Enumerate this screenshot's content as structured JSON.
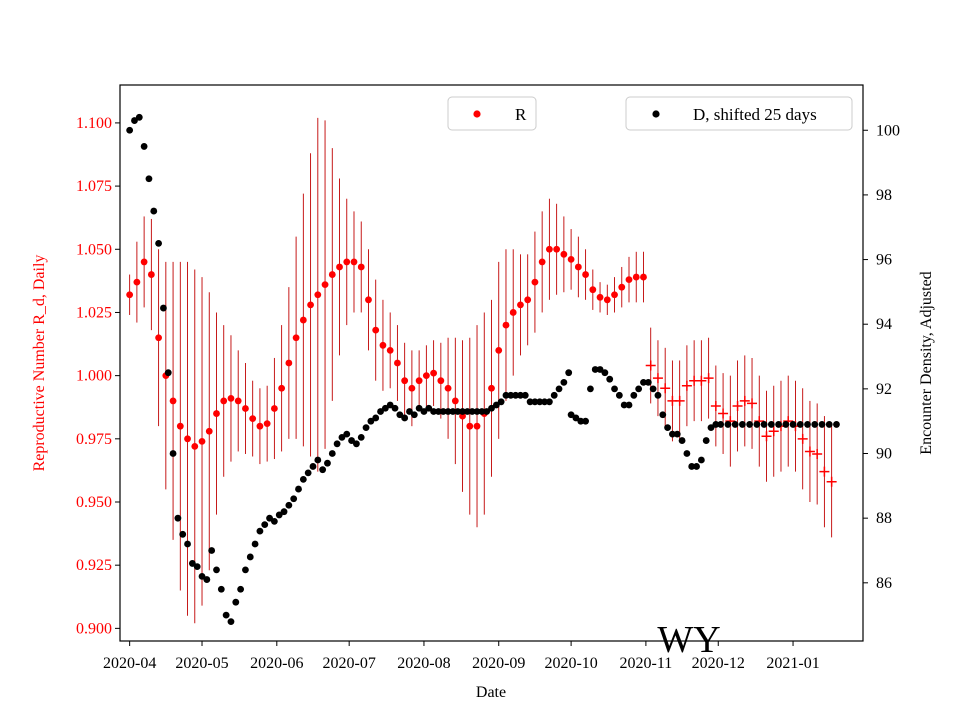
{
  "colors": {
    "r_series": "#ff0000",
    "r_error_bar": "#c00000",
    "d_series": "#000000",
    "axis": "#000000",
    "background": "#ffffff"
  },
  "chart_data": {
    "type": "scatter",
    "state_label": "WY",
    "xlabel": "Date",
    "ylabel_left": "Reproductive Number R_d, Daily",
    "ylabel_right": "Encounter Density, Adjusted",
    "x_ticks": [
      "2020-04",
      "2020-05",
      "2020-06",
      "2020-07",
      "2020-08",
      "2020-09",
      "2020-10",
      "2020-11",
      "2020-12",
      "2021-01"
    ],
    "xlim": [
      "2020-03-28",
      "2021-01-30"
    ],
    "ylim_left": [
      0.895,
      1.115
    ],
    "ylim_right": [
      84.2,
      101.4
    ],
    "y_ticks_left": [
      "0.900",
      "0.925",
      "0.950",
      "0.975",
      "1.000",
      "1.025",
      "1.050",
      "1.075",
      "1.100"
    ],
    "y_ticks_right": [
      "86",
      "88",
      "90",
      "92",
      "94",
      "96",
      "98",
      "100"
    ],
    "legend_left": {
      "label": "R",
      "placement": "top-center"
    },
    "legend_right": {
      "label": "D, shifted 25 days",
      "placement": "top-right"
    },
    "grid": false,
    "series": [
      {
        "name": "R",
        "axis": "left",
        "marker": "dot",
        "color": "#ff0000",
        "points": [
          [
            "2020-04-01",
            1.032,
            0.008
          ],
          [
            "2020-04-04",
            1.037,
            0.016
          ],
          [
            "2020-04-07",
            1.045,
            0.018
          ],
          [
            "2020-04-10",
            1.04,
            0.022
          ],
          [
            "2020-04-13",
            1.015,
            0.035
          ],
          [
            "2020-04-16",
            1.0,
            0.045
          ],
          [
            "2020-04-19",
            0.99,
            0.055
          ],
          [
            "2020-04-22",
            0.98,
            0.065
          ],
          [
            "2020-04-25",
            0.975,
            0.07
          ],
          [
            "2020-04-28",
            0.972,
            0.07
          ],
          [
            "2020-05-01",
            0.974,
            0.065
          ],
          [
            "2020-05-04",
            0.978,
            0.055
          ],
          [
            "2020-05-07",
            0.985,
            0.04
          ],
          [
            "2020-05-10",
            0.99,
            0.03
          ],
          [
            "2020-05-13",
            0.991,
            0.025
          ],
          [
            "2020-05-16",
            0.99,
            0.02
          ],
          [
            "2020-05-19",
            0.987,
            0.018
          ],
          [
            "2020-05-22",
            0.983,
            0.015
          ],
          [
            "2020-05-25",
            0.98,
            0.015
          ],
          [
            "2020-05-28",
            0.981,
            0.015
          ],
          [
            "2020-05-31",
            0.987,
            0.02
          ],
          [
            "2020-06-03",
            0.995,
            0.025
          ],
          [
            "2020-06-06",
            1.005,
            0.03
          ],
          [
            "2020-06-09",
            1.015,
            0.04
          ],
          [
            "2020-06-12",
            1.022,
            0.05
          ],
          [
            "2020-06-15",
            1.028,
            0.06
          ],
          [
            "2020-06-18",
            1.032,
            0.07
          ],
          [
            "2020-06-21",
            1.036,
            0.065
          ],
          [
            "2020-06-24",
            1.04,
            0.05
          ],
          [
            "2020-06-27",
            1.043,
            0.035
          ],
          [
            "2020-06-30",
            1.045,
            0.025
          ],
          [
            "2020-07-03",
            1.045,
            0.02
          ],
          [
            "2020-07-06",
            1.043,
            0.018
          ],
          [
            "2020-07-09",
            1.03,
            0.02
          ],
          [
            "2020-07-12",
            1.018,
            0.02
          ],
          [
            "2020-07-15",
            1.012,
            0.018
          ],
          [
            "2020-07-18",
            1.01,
            0.015
          ],
          [
            "2020-07-21",
            1.005,
            0.015
          ],
          [
            "2020-07-24",
            0.998,
            0.015
          ],
          [
            "2020-07-27",
            0.995,
            0.015
          ],
          [
            "2020-07-30",
            0.998,
            0.012
          ],
          [
            "2020-08-02",
            1.0,
            0.012
          ],
          [
            "2020-08-05",
            1.001,
            0.013
          ],
          [
            "2020-08-08",
            0.998,
            0.015
          ],
          [
            "2020-08-11",
            0.995,
            0.02
          ],
          [
            "2020-08-14",
            0.99,
            0.025
          ],
          [
            "2020-08-17",
            0.984,
            0.03
          ],
          [
            "2020-08-20",
            0.98,
            0.035
          ],
          [
            "2020-08-23",
            0.98,
            0.04
          ],
          [
            "2020-08-26",
            0.985,
            0.04
          ],
          [
            "2020-08-29",
            0.995,
            0.035
          ],
          [
            "2020-09-01",
            1.01,
            0.035
          ],
          [
            "2020-09-04",
            1.02,
            0.03
          ],
          [
            "2020-09-07",
            1.025,
            0.025
          ],
          [
            "2020-09-10",
            1.028,
            0.02
          ],
          [
            "2020-09-13",
            1.03,
            0.018
          ],
          [
            "2020-09-16",
            1.037,
            0.02
          ],
          [
            "2020-09-19",
            1.045,
            0.02
          ],
          [
            "2020-09-22",
            1.05,
            0.02
          ],
          [
            "2020-09-25",
            1.05,
            0.018
          ],
          [
            "2020-09-28",
            1.048,
            0.015
          ],
          [
            "2020-10-01",
            1.046,
            0.012
          ],
          [
            "2020-10-04",
            1.043,
            0.012
          ],
          [
            "2020-10-07",
            1.04,
            0.01
          ],
          [
            "2020-10-10",
            1.034,
            0.008
          ],
          [
            "2020-10-13",
            1.031,
            0.006
          ],
          [
            "2020-10-16",
            1.03,
            0.006
          ],
          [
            "2020-10-19",
            1.032,
            0.007
          ],
          [
            "2020-10-22",
            1.035,
            0.008
          ],
          [
            "2020-10-25",
            1.038,
            0.009
          ],
          [
            "2020-10-28",
            1.039,
            0.01
          ],
          [
            "2020-10-31",
            1.039,
            0.01
          ]
        ]
      },
      {
        "name": "R",
        "axis": "left",
        "marker": "plus",
        "color": "#ff0000",
        "points": [
          [
            "2020-11-03",
            1.004,
            0.015
          ],
          [
            "2020-11-06",
            0.999,
            0.015
          ],
          [
            "2020-11-09",
            0.995,
            0.016
          ],
          [
            "2020-11-12",
            0.99,
            0.016
          ],
          [
            "2020-11-15",
            0.99,
            0.016
          ],
          [
            "2020-11-18",
            0.996,
            0.016
          ],
          [
            "2020-11-21",
            0.998,
            0.016
          ],
          [
            "2020-11-24",
            0.998,
            0.016
          ],
          [
            "2020-11-27",
            0.999,
            0.016
          ],
          [
            "2020-11-30",
            0.988,
            0.016
          ],
          [
            "2020-12-03",
            0.985,
            0.016
          ],
          [
            "2020-12-06",
            0.982,
            0.018
          ],
          [
            "2020-12-09",
            0.988,
            0.018
          ],
          [
            "2020-12-12",
            0.99,
            0.018
          ],
          [
            "2020-12-15",
            0.989,
            0.018
          ],
          [
            "2020-12-18",
            0.982,
            0.018
          ],
          [
            "2020-12-21",
            0.976,
            0.018
          ],
          [
            "2020-12-24",
            0.978,
            0.018
          ],
          [
            "2020-12-27",
            0.98,
            0.018
          ],
          [
            "2020-12-30",
            0.982,
            0.018
          ],
          [
            "2021-01-02",
            0.98,
            0.018
          ],
          [
            "2021-01-05",
            0.975,
            0.02
          ],
          [
            "2021-01-08",
            0.97,
            0.02
          ],
          [
            "2021-01-11",
            0.969,
            0.02
          ],
          [
            "2021-01-14",
            0.962,
            0.022
          ],
          [
            "2021-01-17",
            0.958,
            0.022
          ]
        ]
      },
      {
        "name": "D, shifted 25 days",
        "axis": "right",
        "marker": "dot",
        "color": "#000000",
        "points": [
          [
            "2020-04-01",
            100.0
          ],
          [
            "2020-04-03",
            100.3
          ],
          [
            "2020-04-05",
            100.4
          ],
          [
            "2020-04-07",
            99.5
          ],
          [
            "2020-04-09",
            98.5
          ],
          [
            "2020-04-11",
            97.5
          ],
          [
            "2020-04-13",
            96.5
          ],
          [
            "2020-04-15",
            94.5
          ],
          [
            "2020-04-17",
            92.5
          ],
          [
            "2020-04-19",
            90.0
          ],
          [
            "2020-04-21",
            88.0
          ],
          [
            "2020-04-23",
            87.5
          ],
          [
            "2020-04-25",
            87.2
          ],
          [
            "2020-04-27",
            86.6
          ],
          [
            "2020-04-29",
            86.5
          ],
          [
            "2020-05-01",
            86.2
          ],
          [
            "2020-05-03",
            86.1
          ],
          [
            "2020-05-05",
            87.0
          ],
          [
            "2020-05-07",
            86.4
          ],
          [
            "2020-05-09",
            85.8
          ],
          [
            "2020-05-11",
            85.0
          ],
          [
            "2020-05-13",
            84.8
          ],
          [
            "2020-05-15",
            85.4
          ],
          [
            "2020-05-17",
            85.8
          ],
          [
            "2020-05-19",
            86.4
          ],
          [
            "2020-05-21",
            86.8
          ],
          [
            "2020-05-23",
            87.2
          ],
          [
            "2020-05-25",
            87.6
          ],
          [
            "2020-05-27",
            87.8
          ],
          [
            "2020-05-29",
            88.0
          ],
          [
            "2020-05-31",
            87.9
          ],
          [
            "2020-06-02",
            88.1
          ],
          [
            "2020-06-04",
            88.2
          ],
          [
            "2020-06-06",
            88.4
          ],
          [
            "2020-06-08",
            88.6
          ],
          [
            "2020-06-10",
            88.9
          ],
          [
            "2020-06-12",
            89.2
          ],
          [
            "2020-06-14",
            89.4
          ],
          [
            "2020-06-16",
            89.6
          ],
          [
            "2020-06-18",
            89.8
          ],
          [
            "2020-06-20",
            89.5
          ],
          [
            "2020-06-22",
            89.7
          ],
          [
            "2020-06-24",
            90.0
          ],
          [
            "2020-06-26",
            90.3
          ],
          [
            "2020-06-28",
            90.5
          ],
          [
            "2020-06-30",
            90.6
          ],
          [
            "2020-07-02",
            90.4
          ],
          [
            "2020-07-04",
            90.3
          ],
          [
            "2020-07-06",
            90.5
          ],
          [
            "2020-07-08",
            90.8
          ],
          [
            "2020-07-10",
            91.0
          ],
          [
            "2020-07-12",
            91.1
          ],
          [
            "2020-07-14",
            91.3
          ],
          [
            "2020-07-16",
            91.4
          ],
          [
            "2020-07-18",
            91.5
          ],
          [
            "2020-07-20",
            91.4
          ],
          [
            "2020-07-22",
            91.2
          ],
          [
            "2020-07-24",
            91.1
          ],
          [
            "2020-07-26",
            91.3
          ],
          [
            "2020-07-28",
            91.2
          ],
          [
            "2020-07-30",
            91.4
          ],
          [
            "2020-08-01",
            91.3
          ],
          [
            "2020-08-03",
            91.4
          ],
          [
            "2020-08-05",
            91.3
          ],
          [
            "2020-08-07",
            91.3
          ],
          [
            "2020-08-09",
            91.3
          ],
          [
            "2020-08-11",
            91.3
          ],
          [
            "2020-08-13",
            91.3
          ],
          [
            "2020-08-15",
            91.3
          ],
          [
            "2020-08-17",
            91.3
          ],
          [
            "2020-08-19",
            91.3
          ],
          [
            "2020-08-21",
            91.3
          ],
          [
            "2020-08-23",
            91.3
          ],
          [
            "2020-08-25",
            91.3
          ],
          [
            "2020-08-27",
            91.3
          ],
          [
            "2020-08-29",
            91.4
          ],
          [
            "2020-08-31",
            91.5
          ],
          [
            "2020-09-02",
            91.6
          ],
          [
            "2020-09-04",
            91.8
          ],
          [
            "2020-09-06",
            91.8
          ],
          [
            "2020-09-08",
            91.8
          ],
          [
            "2020-09-10",
            91.8
          ],
          [
            "2020-09-12",
            91.8
          ],
          [
            "2020-09-14",
            91.6
          ],
          [
            "2020-09-16",
            91.6
          ],
          [
            "2020-09-18",
            91.6
          ],
          [
            "2020-09-20",
            91.6
          ],
          [
            "2020-09-22",
            91.6
          ],
          [
            "2020-09-24",
            91.8
          ],
          [
            "2020-09-26",
            92.0
          ],
          [
            "2020-09-28",
            92.2
          ],
          [
            "2020-09-30",
            92.5
          ],
          [
            "2020-10-01",
            91.2
          ],
          [
            "2020-10-03",
            91.1
          ],
          [
            "2020-10-05",
            91.0
          ],
          [
            "2020-10-07",
            91.0
          ],
          [
            "2020-10-09",
            92.0
          ],
          [
            "2020-10-11",
            92.6
          ],
          [
            "2020-10-13",
            92.6
          ],
          [
            "2020-10-15",
            92.5
          ],
          [
            "2020-10-17",
            92.3
          ],
          [
            "2020-10-19",
            92.0
          ],
          [
            "2020-10-21",
            91.8
          ],
          [
            "2020-10-23",
            91.5
          ],
          [
            "2020-10-25",
            91.5
          ],
          [
            "2020-10-27",
            91.8
          ],
          [
            "2020-10-29",
            92.0
          ],
          [
            "2020-10-31",
            92.2
          ],
          [
            "2020-11-02",
            92.2
          ],
          [
            "2020-11-04",
            92.0
          ],
          [
            "2020-11-06",
            91.8
          ],
          [
            "2020-11-08",
            91.2
          ],
          [
            "2020-11-10",
            90.8
          ],
          [
            "2020-11-12",
            90.6
          ],
          [
            "2020-11-14",
            90.6
          ],
          [
            "2020-11-16",
            90.4
          ],
          [
            "2020-11-18",
            90.0
          ],
          [
            "2020-11-20",
            89.6
          ],
          [
            "2020-11-22",
            89.6
          ],
          [
            "2020-11-24",
            89.8
          ],
          [
            "2020-11-26",
            90.4
          ],
          [
            "2020-11-28",
            90.8
          ],
          [
            "2020-11-30",
            90.9
          ],
          [
            "2020-12-02",
            90.9
          ],
          [
            "2020-12-05",
            90.9
          ],
          [
            "2020-12-08",
            90.9
          ],
          [
            "2020-12-11",
            90.9
          ],
          [
            "2020-12-14",
            90.9
          ],
          [
            "2020-12-17",
            90.9
          ],
          [
            "2020-12-20",
            90.9
          ],
          [
            "2020-12-23",
            90.9
          ],
          [
            "2020-12-26",
            90.9
          ],
          [
            "2020-12-29",
            90.9
          ],
          [
            "2021-01-01",
            90.9
          ],
          [
            "2021-01-04",
            90.9
          ],
          [
            "2021-01-07",
            90.9
          ],
          [
            "2021-01-10",
            90.9
          ],
          [
            "2021-01-13",
            90.9
          ],
          [
            "2021-01-16",
            90.9
          ],
          [
            "2021-01-19",
            90.9
          ]
        ]
      }
    ]
  }
}
